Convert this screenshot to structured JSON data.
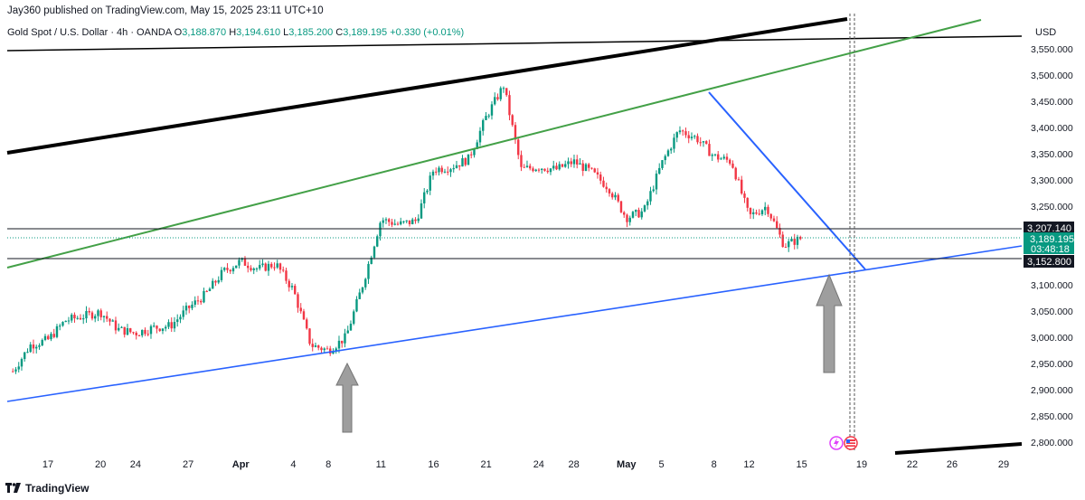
{
  "header": {
    "published": "Jay360 published on TradingView.com, May 15, 2025 23:11 UTC+10"
  },
  "symbol": {
    "name": "Gold Spot / U.S. Dollar · 4h · OANDA",
    "open_label": "O",
    "open": "3,188.870",
    "high_label": "H",
    "high": "3,194.610",
    "low_label": "L",
    "low": "3,185.200",
    "close_label": "C",
    "close": "3,189.195",
    "change": "+0.330 (+0.01%)"
  },
  "currency": "USD",
  "footer": {
    "brand": "TradingView"
  },
  "price_tags": {
    "resistance": "3,207.140",
    "current": "3,189.195",
    "countdown": "03:48:18",
    "support": "3,152.800"
  },
  "colors": {
    "up": "#089981",
    "down": "#f23645",
    "price_tag_current": "#089981",
    "tag_dark": "#131722",
    "green_channel": "#43a047",
    "blue_line": "#2962ff",
    "arrow": "#9e9e9e"
  },
  "chart_data": {
    "type": "candlestick",
    "timeframe": "4h",
    "y_axis": {
      "ticks": [
        2800,
        2850,
        2900,
        2950,
        3000,
        3050,
        3100,
        3150,
        3200,
        3250,
        3300,
        3350,
        3400,
        3450,
        3500,
        3550
      ],
      "tick_labels": [
        "2,800.000",
        "2,850.000",
        "2,900.000",
        "2,950.000",
        "3,000.000",
        "3,050.000",
        "3,100.000",
        "3,150.000",
        "3,200.000",
        "3,250.000",
        "3,300.000",
        "3,350.000",
        "3,400.000",
        "3,450.000",
        "3,500.000",
        "3,550.000"
      ],
      "range": [
        2780,
        3580
      ]
    },
    "x_axis": {
      "tick_labels": [
        "17",
        "20",
        "24",
        "27",
        "Apr",
        "4",
        "8",
        "11",
        "16",
        "21",
        "24",
        "28",
        "May",
        "5",
        "8",
        "12",
        "15",
        "19",
        "22",
        "26",
        "29"
      ],
      "tick_dates": [
        "2025-03-17",
        "2025-03-20",
        "2025-03-24",
        "2025-03-27",
        "2025-04-01",
        "2025-04-04",
        "2025-04-08",
        "2025-04-11",
        "2025-04-16",
        "2025-04-21",
        "2025-04-24",
        "2025-04-28",
        "2025-05-01",
        "2025-05-05",
        "2025-05-08",
        "2025-05-12",
        "2025-05-15",
        "2025-05-19",
        "2025-05-22",
        "2025-05-26",
        "2025-05-29"
      ]
    },
    "horizontal_levels": [
      3207.14,
      3152.8
    ],
    "path": [
      [
        "2025-03-13",
        2935
      ],
      [
        "2025-03-14",
        2985
      ],
      [
        "2025-03-17",
        2995
      ],
      [
        "2025-03-18",
        3032
      ],
      [
        "2025-03-19",
        3040
      ],
      [
        "2025-03-20",
        3048
      ],
      [
        "2025-03-21",
        3015
      ],
      [
        "2025-03-24",
        3008
      ],
      [
        "2025-03-25",
        3018
      ],
      [
        "2025-03-26",
        3022
      ],
      [
        "2025-03-27",
        3055
      ],
      [
        "2025-03-28",
        3082
      ],
      [
        "2025-03-31",
        3125
      ],
      [
        "2025-04-01",
        3145
      ],
      [
        "2025-04-02",
        3130
      ],
      [
        "2025-04-03",
        3140
      ],
      [
        "2025-04-04",
        3090
      ],
      [
        "2025-04-07",
        2985
      ],
      [
        "2025-04-08",
        2975
      ],
      [
        "2025-04-09",
        3000
      ],
      [
        "2025-04-10",
        3105
      ],
      [
        "2025-04-11",
        3225
      ],
      [
        "2025-04-14",
        3215
      ],
      [
        "2025-04-15",
        3222
      ],
      [
        "2025-04-16",
        3320
      ],
      [
        "2025-04-17",
        3325
      ],
      [
        "2025-04-18",
        3340
      ],
      [
        "2025-04-21",
        3420
      ],
      [
        "2025-04-22",
        3480
      ],
      [
        "2025-04-23",
        3320
      ],
      [
        "2025-04-24",
        3325
      ],
      [
        "2025-04-25",
        3320
      ],
      [
        "2025-04-28",
        3335
      ],
      [
        "2025-04-29",
        3315
      ],
      [
        "2025-04-30",
        3285
      ],
      [
        "2025-05-01",
        3228
      ],
      [
        "2025-05-02",
        3240
      ],
      [
        "2025-05-05",
        3330
      ],
      [
        "2025-05-06",
        3395
      ],
      [
        "2025-05-07",
        3380
      ],
      [
        "2025-05-08",
        3345
      ],
      [
        "2025-05-09",
        3335
      ],
      [
        "2025-05-12",
        3230
      ],
      [
        "2025-05-13",
        3250
      ],
      [
        "2025-05-14",
        3175
      ],
      [
        "2025-05-15",
        3189
      ]
    ]
  }
}
